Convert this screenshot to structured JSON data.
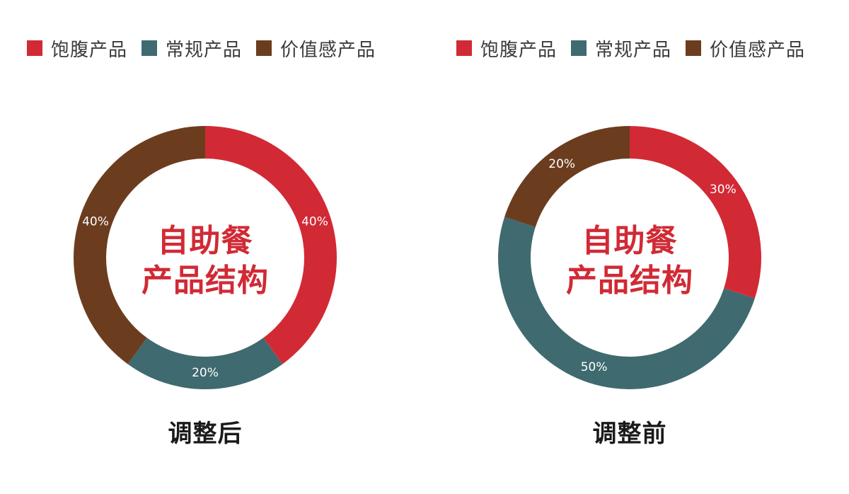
{
  "colors": {
    "filling": "#d12a35",
    "regular": "#3f6a70",
    "value": "#6b3d1e"
  },
  "chart_data": [
    {
      "type": "pie",
      "variant": "donut",
      "center_label_line1": "自助餐",
      "center_label_line2": "产品结构",
      "caption": "调整后",
      "legend": [
        "饱腹产品",
        "常规产品",
        "价值感产品"
      ],
      "legend_position": "top",
      "slices": [
        {
          "name": "饱腹产品",
          "value": 40,
          "label": "40%",
          "color": "#d12a35"
        },
        {
          "name": "常规产品",
          "value": 20,
          "label": "20%",
          "color": "#3f6a70"
        },
        {
          "name": "价值感产品",
          "value": 40,
          "label": "40%",
          "color": "#6b3d1e"
        }
      ]
    },
    {
      "type": "pie",
      "variant": "donut",
      "center_label_line1": "自助餐",
      "center_label_line2": "产品结构",
      "caption": "调整前",
      "legend": [
        "饱腹产品",
        "常规产品",
        "价值感产品"
      ],
      "legend_position": "top",
      "slices": [
        {
          "name": "饱腹产品",
          "value": 30,
          "label": "30%",
          "color": "#d12a35"
        },
        {
          "name": "常规产品",
          "value": 50,
          "label": "50%",
          "color": "#3f6a70"
        },
        {
          "name": "价值感产品",
          "value": 20,
          "label": "20%",
          "color": "#6b3d1e"
        }
      ]
    }
  ]
}
